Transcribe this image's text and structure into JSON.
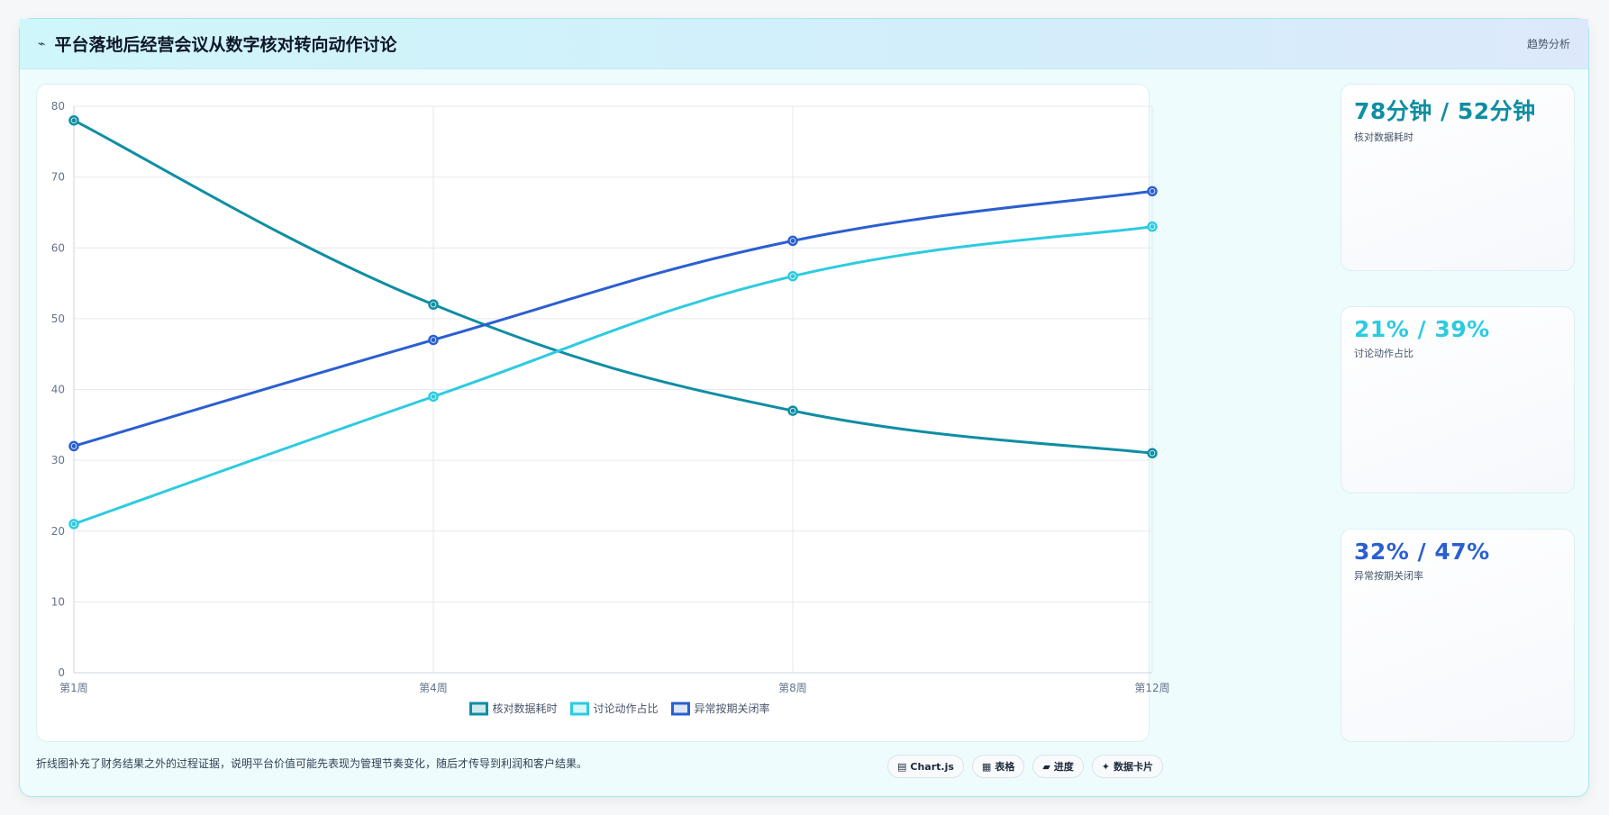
{
  "header": {
    "icon": "trend-line-icon",
    "title": "平台落地后经营会议从数字核对转向动作讨论",
    "tag": "趋势分析"
  },
  "chart_data": {
    "type": "line",
    "categories": [
      "第1周",
      "第4周",
      "第8周",
      "第12周"
    ],
    "ylim": [
      0,
      80
    ],
    "yticks": [
      0,
      10,
      20,
      30,
      40,
      50,
      60,
      70,
      80
    ],
    "grid": true,
    "legend_position": "bottom",
    "series": [
      {
        "name": "核对数据耗时",
        "values": [
          78,
          52,
          37,
          31
        ],
        "color": "#0e8ea3",
        "fill": "#cfe9ef"
      },
      {
        "name": "讨论动作占比",
        "values": [
          21,
          39,
          56,
          63
        ],
        "color": "#2dcbe0",
        "fill": "#d6f6fa"
      },
      {
        "name": "异常按期关闭率",
        "values": [
          32,
          47,
          61,
          68
        ],
        "color": "#2b5fd0",
        "fill": "#dbe6fb"
      }
    ]
  },
  "kpis": [
    {
      "value": "78分钟 / 52分钟",
      "label": "核对数据耗时",
      "color": "#0e8ea3"
    },
    {
      "value": "21% / 39%",
      "label": "讨论动作占比",
      "color": "#2dcbe0"
    },
    {
      "value": "32% / 47%",
      "label": "异常按期关闭率",
      "color": "#2b5fd0"
    }
  ],
  "footnote": "折线图补充了财务结果之外的过程证据，说明平台价值可能先表现为管理节奏变化，随后才传导到利润和客户结果。",
  "chips": [
    {
      "icon": "chart-icon",
      "glyph": "▤",
      "label": "Chart.js"
    },
    {
      "icon": "table-icon",
      "glyph": "▦",
      "label": "表格"
    },
    {
      "icon": "progress-icon",
      "glyph": "▰",
      "label": "进度"
    },
    {
      "icon": "data-card-icon",
      "glyph": "✦",
      "label": "数据卡片"
    }
  ]
}
